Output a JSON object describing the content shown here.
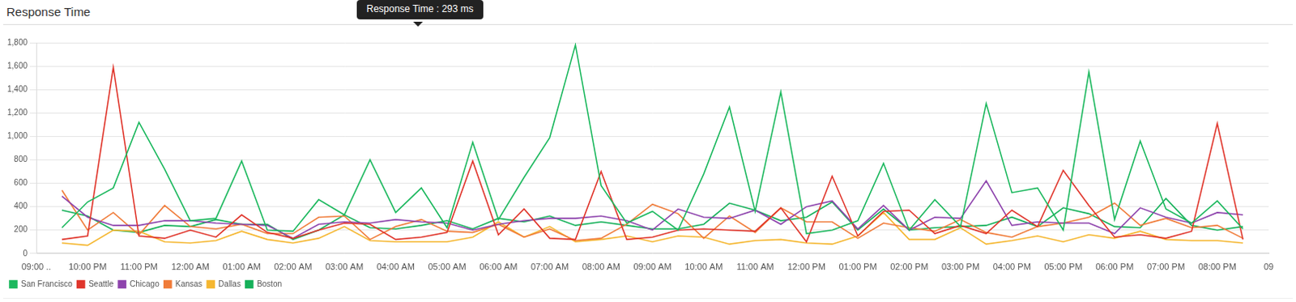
{
  "chart_data": {
    "type": "line",
    "title": "Response Time",
    "annotations": [
      "Response Time : 293 ms"
    ],
    "categories": [
      "09:00 ..",
      null,
      "10:00 PM",
      null,
      "11:00 PM",
      null,
      "12:00 AM",
      null,
      "01:00 AM",
      null,
      "02:00 AM",
      null,
      "03:00 AM",
      null,
      "04:00 AM",
      null,
      "05:00 AM",
      null,
      "06:00 AM",
      null,
      "07:00 AM",
      null,
      "08:00 AM",
      null,
      "09:00 AM",
      null,
      "10:00 AM",
      null,
      "11:00 AM",
      null,
      "12:00 PM",
      null,
      "01:00 PM",
      null,
      "02:00 PM",
      null,
      "03:00 PM",
      null,
      "04:00 PM",
      null,
      "05:00 PM",
      null,
      "06:00 PM",
      null,
      "07:00 PM",
      null,
      "08:00 PM",
      null,
      "09"
    ],
    "series": [
      {
        "name": "San Francisco",
        "color": "#1cb85e",
        "values": [
          null,
          220,
          440,
          560,
          1120,
          720,
          280,
          300,
          790,
          200,
          190,
          460,
          330,
          800,
          350,
          560,
          220,
          950,
          290,
          650,
          990,
          1780,
          580,
          260,
          360,
          200,
          680,
          1250,
          360,
          1380,
          170,
          200,
          280,
          770,
          200,
          460,
          230,
          1280,
          520,
          560,
          200,
          1550,
          290,
          960,
          380,
          260,
          450,
          210,
          null
        ]
      },
      {
        "name": "Seattle",
        "color": "#e0352b",
        "values": [
          null,
          120,
          150,
          1590,
          150,
          130,
          200,
          140,
          330,
          180,
          130,
          200,
          260,
          250,
          120,
          140,
          180,
          790,
          160,
          380,
          130,
          120,
          700,
          120,
          140,
          200,
          210,
          200,
          190,
          390,
          100,
          660,
          150,
          360,
          370,
          170,
          240,
          170,
          370,
          230,
          710,
          410,
          140,
          160,
          130,
          190,
          1110,
          120,
          null
        ]
      },
      {
        "name": "Chicago",
        "color": "#8e44ad",
        "values": [
          null,
          490,
          310,
          240,
          240,
          280,
          280,
          260,
          250,
          240,
          130,
          250,
          270,
          260,
          290,
          270,
          260,
          200,
          250,
          280,
          300,
          300,
          320,
          280,
          200,
          380,
          310,
          300,
          370,
          250,
          400,
          450,
          210,
          410,
          200,
          310,
          300,
          620,
          240,
          270,
          260,
          260,
          170,
          390,
          310,
          260,
          350,
          330,
          null
        ]
      },
      {
        "name": "Kansas",
        "color": "#f07c3a",
        "values": [
          null,
          540,
          200,
          350,
          160,
          410,
          230,
          210,
          250,
          170,
          170,
          310,
          320,
          120,
          230,
          290,
          190,
          180,
          250,
          140,
          210,
          110,
          130,
          250,
          420,
          340,
          130,
          320,
          180,
          390,
          270,
          270,
          130,
          260,
          220,
          190,
          290,
          180,
          140,
          230,
          260,
          310,
          430,
          240,
          300,
          220,
          240,
          130,
          null
        ]
      },
      {
        "name": "Dallas",
        "color": "#f5b731",
        "values": [
          null,
          90,
          70,
          200,
          190,
          100,
          90,
          110,
          190,
          120,
          90,
          130,
          230,
          110,
          100,
          100,
          100,
          140,
          270,
          140,
          230,
          100,
          120,
          150,
          100,
          150,
          140,
          80,
          110,
          120,
          90,
          80,
          150,
          350,
          120,
          120,
          220,
          80,
          110,
          150,
          100,
          160,
          130,
          190,
          120,
          110,
          110,
          90,
          null
        ]
      },
      {
        "name": "Boston",
        "color": "#16b15a",
        "values": [
          null,
          370,
          320,
          200,
          180,
          240,
          230,
          290,
          250,
          250,
          120,
          200,
          330,
          220,
          210,
          240,
          280,
          210,
          300,
          270,
          320,
          240,
          270,
          240,
          210,
          210,
          250,
          430,
          370,
          280,
          310,
          440,
          200,
          380,
          200,
          220,
          230,
          240,
          310,
          230,
          390,
          340,
          230,
          220,
          470,
          240,
          200,
          230,
          null
        ]
      }
    ],
    "ylim": [
      0,
      1800
    ],
    "yticks": [
      0,
      200,
      400,
      600,
      800,
      {
        "value": 1000,
        "label": "1,000"
      },
      {
        "value": 1200,
        "label": "1,200"
      },
      {
        "value": 1400,
        "label": "1,400"
      },
      {
        "value": 1600,
        "label": "1,600"
      },
      {
        "value": 1800,
        "label": "1,800"
      }
    ],
    "grid": true,
    "legend": "bottom-left"
  }
}
